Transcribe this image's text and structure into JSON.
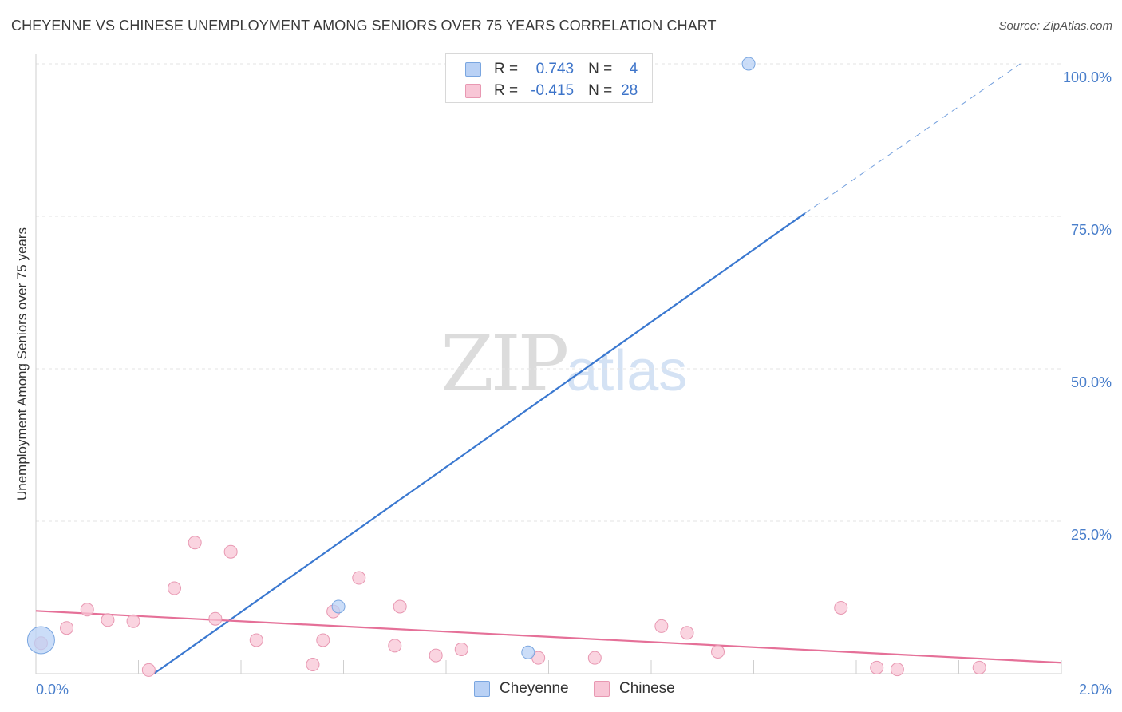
{
  "header": {
    "title": "CHEYENNE VS CHINESE UNEMPLOYMENT AMONG SENIORS OVER 75 YEARS CORRELATION CHART",
    "source": "Source: ZipAtlas.com"
  },
  "watermark": {
    "zip": "ZIP",
    "atlas": "atlas"
  },
  "legend": {
    "cheyenne": {
      "r_label": "R =",
      "r_value": "0.743",
      "n_label": "N =",
      "n_value": "4"
    },
    "chinese": {
      "r_label": "R =",
      "r_value": "-0.415",
      "n_label": "N =",
      "n_value": "28"
    }
  },
  "bottom_legend": {
    "cheyenne": "Cheyenne",
    "chinese": "Chinese"
  },
  "chart_data": {
    "type": "scatter",
    "title": "CHEYENNE VS CHINESE UNEMPLOYMENT AMONG SENIORS OVER 75 YEARS CORRELATION CHART",
    "xlabel": "",
    "ylabel": "Unemployment Among Seniors over 75 years",
    "xlim": [
      0,
      2.0
    ],
    "ylim": [
      0,
      100
    ],
    "x_tick_labels": [
      "0.0%",
      "2.0%"
    ],
    "y_ticks": [
      25,
      50,
      75,
      100
    ],
    "y_tick_labels": [
      "25.0%",
      "50.0%",
      "75.0%",
      "100.0%"
    ],
    "colors": {
      "cheyenne_fill": "#b9d1f5",
      "cheyenne_stroke": "#7aa6e0",
      "cheyenne_line": "#3a78d0",
      "chinese_fill": "#f8c6d6",
      "chinese_stroke": "#e898b2",
      "chinese_line": "#e57098"
    },
    "series": [
      {
        "name": "Cheyenne",
        "points": [
          {
            "x": 0.01,
            "y": 5.5,
            "size": "large"
          },
          {
            "x": 0.59,
            "y": 11.0
          },
          {
            "x": 0.96,
            "y": 3.5
          },
          {
            "x": 1.39,
            "y": 100.0
          }
        ],
        "trend": {
          "x0": 0.23,
          "y0": 0.0,
          "x1": 1.5,
          "y1": 75.5,
          "dashed_to_x": 1.92,
          "dashed_to_y": 100.0
        }
      },
      {
        "name": "Chinese",
        "points": [
          {
            "x": 0.01,
            "y": 5.0
          },
          {
            "x": 0.06,
            "y": 7.5
          },
          {
            "x": 0.1,
            "y": 10.5
          },
          {
            "x": 0.14,
            "y": 8.8
          },
          {
            "x": 0.19,
            "y": 8.6
          },
          {
            "x": 0.22,
            "y": 0.6
          },
          {
            "x": 0.27,
            "y": 14.0
          },
          {
            "x": 0.31,
            "y": 21.5
          },
          {
            "x": 0.35,
            "y": 9.0
          },
          {
            "x": 0.38,
            "y": 20.0
          },
          {
            "x": 0.43,
            "y": 5.5
          },
          {
            "x": 0.54,
            "y": 1.5
          },
          {
            "x": 0.56,
            "y": 5.5
          },
          {
            "x": 0.58,
            "y": 10.2
          },
          {
            "x": 0.63,
            "y": 15.7
          },
          {
            "x": 0.7,
            "y": 4.6
          },
          {
            "x": 0.71,
            "y": 11.0
          },
          {
            "x": 0.78,
            "y": 3.0
          },
          {
            "x": 0.83,
            "y": 4.0
          },
          {
            "x": 0.98,
            "y": 2.6
          },
          {
            "x": 1.09,
            "y": 2.6
          },
          {
            "x": 1.22,
            "y": 7.8
          },
          {
            "x": 1.27,
            "y": 6.7
          },
          {
            "x": 1.33,
            "y": 3.6
          },
          {
            "x": 1.57,
            "y": 10.8
          },
          {
            "x": 1.64,
            "y": 1.0
          },
          {
            "x": 1.68,
            "y": 0.7
          },
          {
            "x": 1.84,
            "y": 1.0
          }
        ],
        "trend": {
          "x0": 0.0,
          "y0": 10.3,
          "x1": 2.0,
          "y1": 1.8
        }
      }
    ]
  }
}
